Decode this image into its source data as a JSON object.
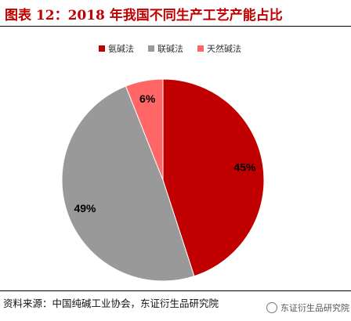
{
  "header": {
    "title": "图表 12：2018 年我国不同生产工艺产能占比"
  },
  "footer": {
    "source": "资料来源：中国纯碱工业协会，东证衍生品研究院",
    "watermark": "东证衍生品研究院"
  },
  "chart_data": {
    "type": "pie",
    "title": "",
    "legend_position": "top",
    "slices": [
      {
        "name": "氨碱法",
        "value": 45,
        "label": "45%",
        "color": "#c00000"
      },
      {
        "name": "联碱法",
        "value": 49,
        "label": "49%",
        "color": "#999999"
      },
      {
        "name": "天然碱法",
        "value": 6,
        "label": "6%",
        "color": "#ff6666"
      }
    ]
  }
}
